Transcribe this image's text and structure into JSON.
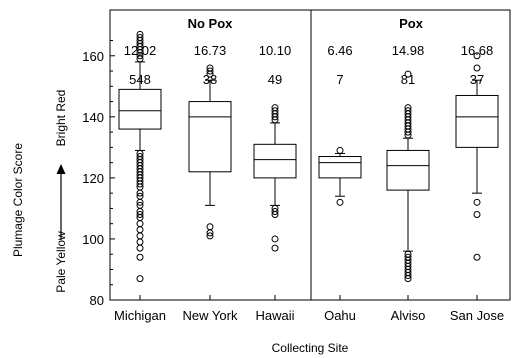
{
  "chart_data": {
    "type": "box",
    "xlabel": "Collecting Site",
    "ylabel": "Plumage Color Score",
    "y_low_label": "Pale Yellow",
    "y_high_label": "Bright Red",
    "ylim": [
      80,
      175
    ],
    "yticks": [
      80,
      100,
      120,
      140,
      160
    ],
    "grid": false,
    "groups": [
      {
        "label": "No Pox",
        "sites": [
          "Michigan",
          "New York",
          "Hawaii"
        ]
      },
      {
        "label": "Pox",
        "sites": [
          "Oahu",
          "Alviso",
          "San Jose"
        ]
      }
    ],
    "categories": [
      "Michigan",
      "New York",
      "Hawaii",
      "Oahu",
      "Alviso",
      "San Jose"
    ],
    "top_values": [
      "12.02",
      "16.73",
      "10.10",
      "6.46",
      "14.98",
      "16.68"
    ],
    "sample_sizes": [
      "548",
      "38",
      "49",
      "7",
      "81",
      "37"
    ],
    "boxes": [
      {
        "q1": 136,
        "median": 142,
        "q3": 149,
        "whisker_low": 129,
        "whisker_high": 158,
        "outliers": [
          87,
          94,
          97,
          99,
          101,
          103,
          105,
          107,
          108,
          109,
          111,
          112,
          114,
          115,
          117,
          118,
          119,
          120,
          121,
          122,
          123,
          124,
          125,
          126,
          127,
          128,
          159,
          160,
          161,
          162,
          163,
          164,
          165,
          166,
          167
        ]
      },
      {
        "q1": 122,
        "median": 140,
        "q3": 145,
        "whisker_low": 111,
        "whisker_high": 152,
        "outliers": [
          101,
          102,
          104,
          154,
          155,
          156
        ]
      },
      {
        "q1": 120,
        "median": 126,
        "q3": 131,
        "whisker_low": 111,
        "whisker_high": 138,
        "outliers": [
          97,
          100,
          108,
          109,
          110,
          139,
          140,
          141,
          142,
          143
        ]
      },
      {
        "q1": 120,
        "median": 125,
        "q3": 127,
        "whisker_low": 114,
        "whisker_high": 128,
        "outliers": [
          112,
          129
        ]
      },
      {
        "q1": 116,
        "median": 124,
        "q3": 129,
        "whisker_low": 96,
        "whisker_high": 133,
        "outliers": [
          87,
          88,
          89,
          90,
          91,
          92,
          93,
          94,
          95,
          134,
          135,
          136,
          137,
          138,
          139,
          140,
          141,
          142,
          143,
          154
        ]
      },
      {
        "q1": 130,
        "median": 140,
        "q3": 147,
        "whisker_low": 115,
        "whisker_high": 152,
        "outliers": [
          94,
          108,
          112,
          156,
          160
        ]
      }
    ]
  }
}
